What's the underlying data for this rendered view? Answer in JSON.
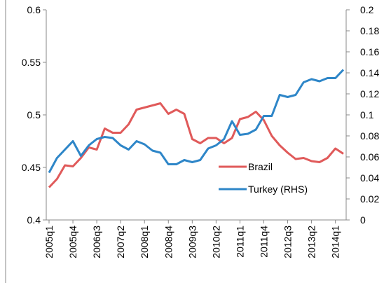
{
  "chart_data": {
    "type": "line",
    "categories": [
      "2005q1",
      null,
      null,
      "2005q4",
      null,
      null,
      "2006q3",
      null,
      null,
      "2007q2",
      null,
      null,
      "2008q1",
      null,
      null,
      "2008q4",
      null,
      null,
      "2009q3",
      null,
      null,
      "2010q2",
      null,
      null,
      "2011q1",
      null,
      null,
      "2011q4",
      null,
      null,
      "2012q3",
      null,
      null,
      "2013q2",
      null,
      null,
      "2014q1",
      null
    ],
    "series": [
      {
        "name": "Brazil",
        "color": "#e05a5a",
        "axis": "y",
        "values": [
          0.431,
          0.439,
          0.452,
          0.451,
          0.459,
          0.469,
          0.467,
          0.487,
          0.483,
          0.483,
          0.491,
          0.505,
          0.507,
          0.509,
          0.511,
          0.501,
          0.505,
          0.501,
          0.477,
          0.473,
          0.478,
          0.478,
          0.473,
          0.478,
          0.496,
          0.498,
          0.503,
          0.495,
          0.48,
          0.471,
          0.464,
          0.458,
          0.459,
          0.456,
          0.455,
          0.459,
          0.468,
          0.463
        ]
      },
      {
        "name": "Turkey (RHS)",
        "color": "#2e86c8",
        "axis": "y2",
        "values": [
          0.045,
          0.059,
          0.067,
          0.075,
          0.061,
          0.071,
          0.077,
          0.079,
          0.078,
          0.071,
          0.067,
          0.075,
          0.072,
          0.066,
          0.064,
          0.053,
          0.053,
          0.057,
          0.055,
          0.057,
          0.068,
          0.071,
          0.077,
          0.094,
          0.081,
          0.082,
          0.086,
          0.099,
          0.099,
          0.119,
          0.117,
          0.119,
          0.131,
          0.134,
          0.132,
          0.135,
          0.135,
          0.143
        ]
      }
    ],
    "ylim": [
      0.4,
      0.6
    ],
    "yticks": [
      0.4,
      0.45,
      0.5,
      0.55,
      0.6
    ],
    "y2lim": [
      0,
      0.2
    ],
    "y2ticks": [
      0,
      0.02,
      0.04,
      0.06,
      0.08,
      0.1,
      0.12,
      0.14,
      0.16,
      0.18,
      0.2
    ],
    "grid": false,
    "legend": "lower right"
  }
}
